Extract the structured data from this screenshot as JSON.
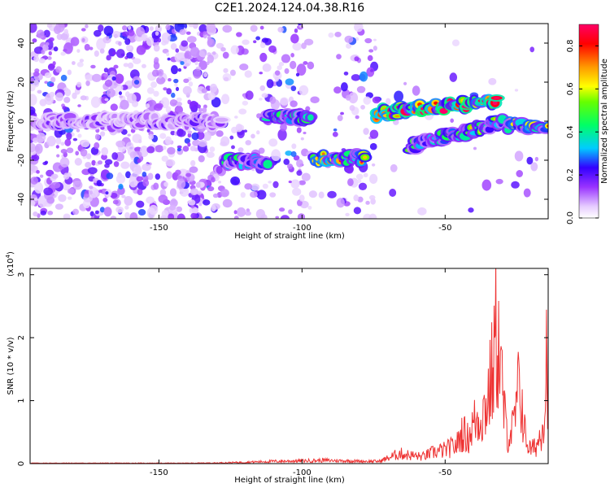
{
  "figure": {
    "title": "C2E1.2024.124.04.38.R16"
  },
  "chart_data": [
    {
      "type": "heatmap",
      "title": "C2E1.2024.124.04.38.R16",
      "xlabel": "Height of straight line (km)",
      "ylabel": "Frequency (Hz)",
      "xlim": [
        -195,
        -14
      ],
      "ylim": [
        -50,
        50
      ],
      "xticks": [
        -150,
        -100,
        -50
      ],
      "yticks": [
        -40,
        -20,
        0,
        20,
        40
      ],
      "colorbar": {
        "label": "Normalized spectral amplitude",
        "range": [
          0,
          0.9
        ],
        "ticks": [
          0.0,
          0.2,
          0.4,
          0.6,
          0.8
        ]
      },
      "features": [
        {
          "x_start": -195,
          "x_end": -128,
          "freq": 0,
          "description_level": 0.15
        },
        {
          "x_start": -127,
          "x_end": -112,
          "freq": -21,
          "level": 0.35
        },
        {
          "x_start": -112,
          "x_end": -97,
          "freq": 2,
          "level": 0.35
        },
        {
          "x_start": -96,
          "x_end": -78,
          "freq": -19,
          "level": 0.55
        },
        {
          "x_start": -74,
          "x_end": -32,
          "freq_start": 4,
          "freq_end": 10,
          "level": 0.7
        },
        {
          "x_start": -62,
          "x_end": -30,
          "freq_start": -13,
          "freq_end": 0,
          "level": 0.4
        },
        {
          "x_start": -28,
          "x_end": -14,
          "freq": -2,
          "level": 0.5
        }
      ]
    },
    {
      "type": "line",
      "xlabel": "Height of straight line (km)",
      "ylabel": "SNR (10 * v/v)",
      "y_multiplier": "(x10",
      "y_multiplier_exp": "4",
      "y_multiplier_close": ")",
      "xlim": [
        -195,
        -14
      ],
      "ylim": [
        0,
        3.1
      ],
      "xticks": [
        -150,
        -100,
        -50
      ],
      "yticks": [
        0,
        1,
        2,
        3
      ],
      "series": [
        {
          "color": "#ee3333",
          "x": [
            -195,
            -180,
            -160,
            -140,
            -130,
            -120,
            -110,
            -100,
            -92,
            -85,
            -78,
            -73,
            -70,
            -66,
            -62,
            -58,
            -54,
            -50,
            -46,
            -44,
            -42,
            -40,
            -38,
            -36,
            -34,
            -33,
            -32,
            -31,
            -30,
            -29,
            -28,
            -27,
            -26,
            -25,
            -24,
            -23,
            -22,
            -21,
            -20,
            -19,
            -18,
            -17,
            -16,
            -15,
            -14.5,
            -14
          ],
          "y": [
            0.01,
            0.01,
            0.01,
            0.01,
            0.015,
            0.03,
            0.05,
            0.06,
            0.07,
            0.06,
            0.05,
            0.05,
            0.12,
            0.22,
            0.18,
            0.15,
            0.25,
            0.3,
            0.4,
            0.7,
            0.55,
            0.9,
            1.0,
            1.2,
            1.8,
            2.2,
            3.05,
            2.3,
            1.6,
            0.9,
            0.6,
            0.7,
            0.8,
            1.3,
            1.75,
            1.2,
            0.6,
            0.4,
            0.3,
            0.35,
            0.4,
            0.6,
            0.9,
            1.4,
            2.7,
            1.8
          ]
        }
      ]
    }
  ]
}
